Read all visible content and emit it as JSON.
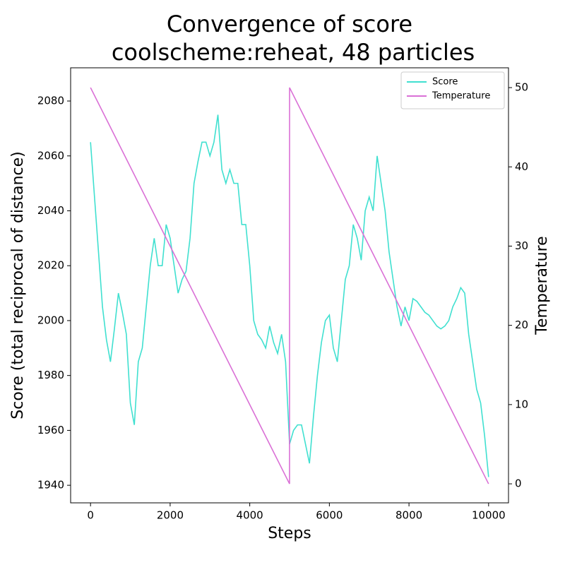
{
  "chart_data": {
    "type": "line",
    "title": [
      "Convergence of score",
      "coolscheme:reheat, 48 particles"
    ],
    "xlabel": "Steps",
    "ylabel": "Score (total reciprocal of distance)",
    "y2label": "Temperature",
    "xlim": [
      -500,
      10500
    ],
    "ylim": [
      1933.6,
      2092.1
    ],
    "y2lim": [
      -2.4,
      52.5
    ],
    "xticks": [
      0,
      2000,
      4000,
      6000,
      8000,
      10000
    ],
    "yticks": [
      1940,
      1960,
      1980,
      2000,
      2020,
      2040,
      2060,
      2080
    ],
    "y2ticks": [
      0,
      10,
      20,
      30,
      40,
      50
    ],
    "legend": "upper-right",
    "series": [
      {
        "name": "Score",
        "color": "#40e0d0",
        "x": [
          0,
          100,
          200,
          300,
          400,
          500,
          600,
          700,
          800,
          900,
          1000,
          1100,
          1200,
          1300,
          1400,
          1500,
          1600,
          1700,
          1800,
          1900,
          2000,
          2100,
          2200,
          2300,
          2400,
          2500,
          2600,
          2700,
          2800,
          2900,
          3000,
          3100,
          3200,
          3300,
          3400,
          3500,
          3600,
          3700,
          3800,
          3900,
          4000,
          4100,
          4200,
          4300,
          4400,
          4500,
          4600,
          4700,
          4800,
          4900,
          5000,
          5100,
          5200,
          5300,
          5400,
          5500,
          5600,
          5700,
          5800,
          5900,
          6000,
          6100,
          6200,
          6300,
          6400,
          6500,
          6600,
          6700,
          6800,
          6900,
          7000,
          7100,
          7200,
          7300,
          7400,
          7500,
          7600,
          7700,
          7800,
          7900,
          8000,
          8100,
          8200,
          8300,
          8400,
          8500,
          8600,
          8700,
          8800,
          8900,
          9000,
          9100,
          9200,
          9300,
          9400,
          9500,
          9600,
          9700,
          9800,
          9900,
          10000
        ],
        "values": [
          2065,
          2045,
          2025,
          2005,
          1993,
          1985,
          1997,
          2010,
          2003,
          1995,
          1970,
          1962,
          1985,
          1990,
          2005,
          2020,
          2030,
          2020,
          2020,
          2035,
          2030,
          2020,
          2010,
          2015,
          2018,
          2030,
          2050,
          2058,
          2065,
          2065,
          2060,
          2065,
          2075,
          2055,
          2050,
          2055,
          2050,
          2050,
          2035,
          2035,
          2020,
          2000,
          1995,
          1993,
          1990,
          1998,
          1992,
          1988,
          1995,
          1985,
          1955,
          1960,
          1962,
          1962,
          1955,
          1948,
          1965,
          1980,
          1992,
          2000,
          2002,
          1990,
          1985,
          2000,
          2015,
          2020,
          2035,
          2030,
          2022,
          2040,
          2045,
          2040,
          2060,
          2050,
          2040,
          2025,
          2015,
          2005,
          1998,
          2005,
          2000,
          2008,
          2007,
          2005,
          2003,
          2002,
          2000,
          1998,
          1997,
          1998,
          2000,
          2005,
          2008,
          2012,
          2010,
          1995,
          1985,
          1975,
          1970,
          1958,
          1943
        ]
      },
      {
        "name": "Temperature",
        "color": "#da70d6",
        "axis": "y2",
        "x": [
          0,
          4999,
          5000,
          9999
        ],
        "values": [
          50,
          0,
          50,
          0
        ]
      }
    ]
  }
}
